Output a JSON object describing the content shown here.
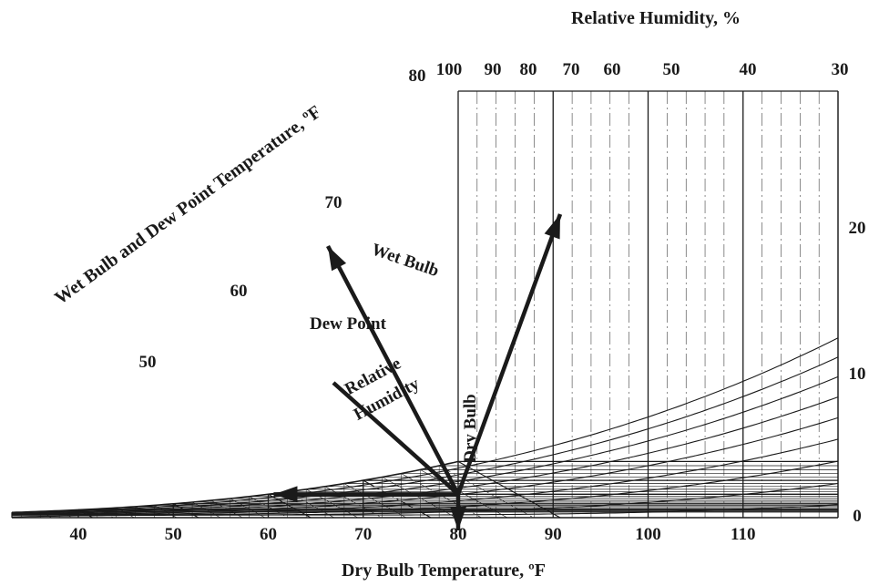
{
  "title_top": "Relative Humidity, %",
  "title_bottom": "Dry Bulb Temperature, ºF",
  "title_left": "Wet Bulb and Dew Point Temperature, ºF",
  "x_ticks": [
    "40",
    "50",
    "60",
    "70",
    "80",
    "90",
    "100",
    "110"
  ],
  "x_tick_values": [
    40,
    50,
    60,
    70,
    80,
    90,
    100,
    110
  ],
  "rh_ticks": [
    "100",
    "90",
    "80",
    "70",
    "60",
    "50",
    "40",
    "30"
  ],
  "rh_tick_values": [
    100,
    90,
    80,
    70,
    60,
    50,
    40,
    30
  ],
  "rh_right_ticks": [
    "20",
    "10",
    "0"
  ],
  "rh_right_values": [
    20,
    10,
    0
  ],
  "saturation_ticks": [
    "50",
    "60",
    "70",
    "80"
  ],
  "saturation_values": [
    50,
    60,
    70,
    80
  ],
  "annotations": {
    "wet_bulb": "Wet Bulb",
    "dew_point": "Dew Point",
    "relative_humidity_line1": "Relative",
    "relative_humidity_line2": "Humidity",
    "dry_bulb": "Dry Bulb"
  },
  "state_point": {
    "dry_bulb": 80,
    "wet_bulb": 68.5,
    "dew_point": 60
  },
  "ranges": {
    "dry_bulb": [
      33,
      120
    ],
    "dew_point": [
      -10,
      80
    ]
  },
  "colors": {
    "lines": "#1a1a1a",
    "background": "#ffffff"
  }
}
